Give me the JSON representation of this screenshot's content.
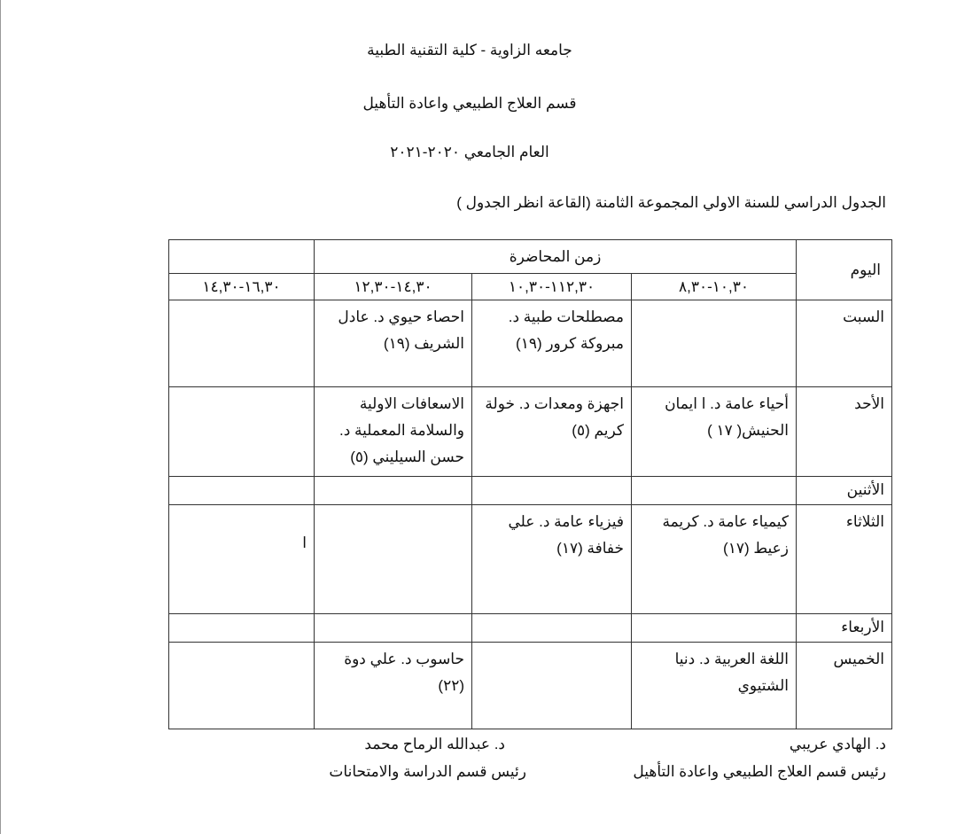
{
  "header": {
    "university": "جامعه الزاوية - كلية التقنية الطبية",
    "department": "قسم العلاج الطبيعي واعادة التأهيل",
    "year": "العام الجامعي ٢٠٢٠-٢٠٢١",
    "schedule_title": "الجدول الدراسي للسنة الاولي المجموعة الثامنة (القاعة انظر الجدول )"
  },
  "table": {
    "day_header": "اليوم",
    "time_header": "زمن المحاضرة",
    "slots": [
      "١٠,٣٠-٨,٣٠",
      "١١٢,٣٠-١٠,٣٠",
      "١٤,٣٠-١٢,٣٠",
      "١٦,٣٠-١٤,٣٠"
    ],
    "rows": [
      {
        "day": "السبت",
        "cells": [
          "",
          "مصطلحات طبية د. مبروكة كرور (١٩)",
          "احصاء حيوي د. عادل الشريف (١٩)",
          ""
        ]
      },
      {
        "day": "الأحد",
        "cells": [
          "أحياء عامة د.      ا ايمان الحنيش( ١٧ )",
          "اجهزة ومعدات د. خولة كريم (٥)",
          "الاسعافات الاولية والسلامة المعملية  د. حسن السيليني (٥)",
          ""
        ]
      },
      {
        "day": "الأثنين",
        "cells": [
          "",
          "",
          "",
          ""
        ]
      },
      {
        "day": "الثلاثاء",
        "cells": [
          "كيمياء عامة  د. كريمة زعيط (١٧)",
          "فيزياء عامة  د. علي خفافة  (١٧)",
          "",
          "ا"
        ]
      },
      {
        "day": "الأربعاء",
        "cells": [
          "",
          "",
          "",
          ""
        ]
      },
      {
        "day": "الخميس",
        "cells": [
          " اللغة العربية  د. دنيا الشتيوي",
          "",
          "حاسوب   د.  علي دوة  (٢٢)",
          ""
        ]
      }
    ]
  },
  "signatures": {
    "right_name": "د. الهادي عريبي",
    "right_title": "رئيس قسم العلاج الطبيعي واعادة التأهيل",
    "left_name": "د. عبدالله الرماح محمد",
    "left_title": "رئيس قسم الدراسة والامتحانات"
  }
}
